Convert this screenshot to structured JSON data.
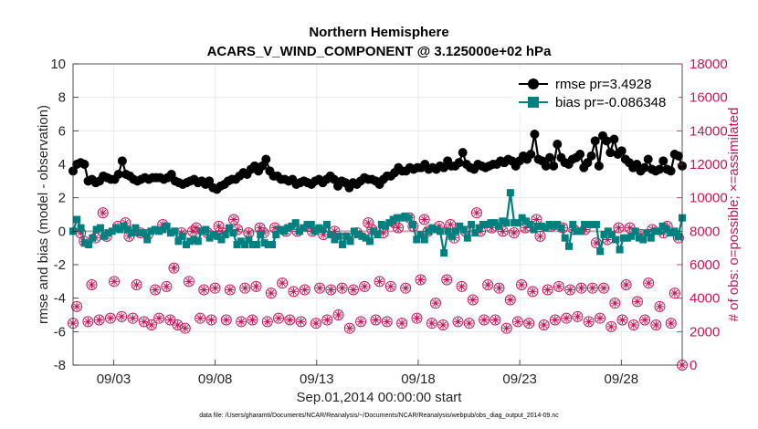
{
  "chart_data": {
    "type": "line",
    "title": "Northern Hemisphere",
    "subtitle": "ACARS_V_WIND_COMPONENT @ 3.125000e+02 hPa",
    "xlabel": "Sep.01,2014 00:00:00 start",
    "ylabel": "rmse and bias (model - observation)",
    "ylabel_right": "# of obs: o=possible; ×=assimilated",
    "footer": "data file: /Users/gharamti/Documents/NCAR/Reanalysis/~/Documents/NCAR/Reanalysis/webpub/obs_diag_output_2014-09.nc",
    "xlim": [
      1.0,
      31.0
    ],
    "ylim": [
      -8,
      10
    ],
    "ylim_right": [
      0,
      18000
    ],
    "grid": true,
    "legend_position": "top-right",
    "x_ticks": [
      3,
      8,
      13,
      18,
      23,
      28
    ],
    "x_tick_labels": [
      "09/03",
      "09/08",
      "09/13",
      "09/18",
      "09/23",
      "09/28"
    ],
    "y_ticks": [
      -8,
      -6,
      -4,
      -2,
      0,
      2,
      4,
      6,
      8,
      10
    ],
    "y_tick_labels": [
      "-8",
      "-6",
      "-4",
      "-2",
      "0",
      "2",
      "4",
      "6",
      "8",
      "10"
    ],
    "y_ticks_right": [
      0,
      2000,
      4000,
      6000,
      8000,
      10000,
      12000,
      14000,
      16000,
      18000
    ],
    "y_tick_labels_right": [
      "0",
      "2000",
      "4000",
      "6000",
      "8000",
      "10000",
      "12000",
      "14000",
      "16000",
      "18000"
    ],
    "colors": {
      "rmse": "#000000",
      "bias": "#00807f",
      "obs": "#c2185b",
      "zero_line": "#b0b0b0"
    },
    "series": [
      {
        "name": "rmse pr=3.4928",
        "values": [
          3.6,
          4.0,
          4.1,
          4.0,
          3.0,
          3.1,
          2.9,
          3.0,
          3.3,
          3.2,
          3.1,
          3.1,
          3.4,
          4.2,
          3.4,
          3.3,
          3.1,
          3.0,
          3.1,
          3.2,
          3.1,
          3.2,
          3.2,
          3.2,
          3.1,
          3.2,
          3.4,
          3.0,
          2.9,
          2.8,
          2.9,
          3.0,
          3.1,
          2.9,
          3.0,
          2.8,
          3.0,
          2.6,
          2.5,
          2.7,
          2.8,
          3.0,
          3.1,
          3.1,
          3.3,
          3.5,
          3.4,
          3.7,
          3.9,
          3.6,
          3.9,
          4.3,
          3.6,
          3.3,
          3.3,
          3.1,
          3.1,
          3.0,
          3.1,
          2.8,
          2.9,
          3.0,
          2.9,
          2.8,
          3.0,
          3.1,
          2.9,
          3.1,
          3.3,
          3.1,
          2.7,
          3.0,
          2.9,
          2.6,
          2.9,
          2.8,
          3.0,
          3.2,
          3.1,
          3.1,
          3.0,
          2.8,
          3.1,
          3.3,
          3.3,
          3.5,
          3.8,
          3.6,
          3.6,
          3.8,
          3.7,
          3.8,
          3.8,
          4.0,
          3.7,
          3.8,
          3.7,
          3.9,
          3.8,
          4.2,
          3.9,
          3.9,
          4.1,
          4.7,
          4.0,
          3.8,
          3.7,
          4.0,
          3.9,
          3.8,
          3.9,
          4.0,
          4.0,
          4.2,
          4.1,
          4.3,
          4.2,
          3.9,
          4.2,
          4.5,
          4.3,
          4.6,
          5.8,
          4.3,
          4.2,
          3.9,
          4.4,
          3.9,
          5.2,
          4.4,
          4.1,
          4.0,
          4.3,
          4.4,
          4.6,
          3.8,
          4.1,
          4.5,
          5.4,
          3.9,
          5.7,
          5.4,
          4.7,
          5.5,
          4.6,
          4.8,
          4.3,
          4.1,
          3.8,
          4.0,
          3.6,
          3.8,
          4.3,
          3.7,
          3.6,
          3.7,
          4.2,
          3.7,
          3.6,
          4.6,
          4.5,
          3.9
        ]
      },
      {
        "name": "bias pr=-0.086348",
        "values": [
          0.0,
          0.7,
          0.2,
          -0.7,
          -0.8,
          -0.4,
          0.1,
          0.2,
          -0.3,
          -0.1,
          0.0,
          0.2,
          0.1,
          0.3,
          0.1,
          -0.1,
          0.2,
          -0.1,
          -0.1,
          -0.5,
          0.0,
          0.1,
          0.0,
          0.1,
          0.3,
          -0.1,
          0.0,
          -0.6,
          -0.3,
          -0.8,
          -0.6,
          -0.5,
          -0.6,
          0.0,
          0.1,
          -0.4,
          -0.2,
          -0.3,
          -0.5,
          -0.2,
          0.2,
          -0.1,
          -0.8,
          -0.6,
          -0.8,
          -0.5,
          -0.8,
          -0.8,
          -0.2,
          -0.7,
          -0.8,
          -0.8,
          -0.2,
          0.1,
          0.0,
          0.2,
          0.3,
          0.5,
          0.0,
          0.2,
          0.4,
          0.4,
          0.0,
          0.2,
          0.1,
          0.4,
          -0.2,
          -0.5,
          -0.3,
          -0.8,
          -0.3,
          -0.6,
          0.0,
          -0.2,
          -0.3,
          -0.4,
          -0.6,
          0.0,
          -0.2,
          0.4,
          0.3,
          0.5,
          0.7,
          0.8,
          0.8,
          0.9,
          0.8,
          0.4,
          -0.5,
          -0.2,
          -0.5,
          0.0,
          0.2,
          0.1,
          0.0,
          -1.3,
          0.0,
          -0.3,
          0.0,
          0.3,
          0.1,
          -0.4,
          0.4,
          -0.1,
          0.2,
          0.4,
          0.4,
          0.5,
          0.5,
          0.3,
          0.6,
          0.5,
          2.3,
          0.5,
          0.5,
          0.8,
          0.6,
          0.4,
          0.1,
          0.3,
          0.3,
          0.2,
          0.4,
          0.3,
          0.4,
          0.2,
          -0.4,
          -0.9,
          0.4,
          0.0,
          0.0,
          0.4,
          0.4,
          0.4,
          0.4,
          -1.2,
          -0.2,
          0.0,
          -0.2,
          -0.5,
          -1.1,
          -0.4,
          -0.4,
          -0.3,
          0.0,
          -0.4,
          -0.5,
          -0.1,
          -0.4,
          0.0,
          0.0,
          0.3,
          0.1,
          -0.1,
          0.0,
          -0.3,
          0.8
        ]
      }
    ],
    "obs_possible": [
      2500,
      3500,
      7900,
      7400,
      2600,
      4800,
      7600,
      2700,
      9100,
      7700,
      2800,
      5000,
      8300,
      2900,
      8500,
      7700,
      2800,
      4800,
      7900,
      2600,
      7800,
      2400,
      4500,
      2800,
      8400,
      4700,
      2700,
      5800,
      2400,
      7900,
      2200,
      5000,
      8000,
      8200,
      2800,
      4500,
      7900,
      2700,
      4600,
      8300,
      7900,
      2700,
      4500,
      8700,
      8100,
      2600,
      4600,
      7900,
      2700,
      4700,
      8200,
      7900,
      2600,
      4300,
      8200,
      2800,
      4900,
      8000,
      2700,
      4400,
      8000,
      2600,
      4500,
      8300,
      8000,
      2500,
      4600,
      7800,
      2700,
      4500,
      8000,
      3000,
      4600,
      7600,
      2200,
      4500,
      7900,
      2600,
      4700,
      8500,
      8100,
      2700,
      5000,
      7900,
      2600,
      4700,
      8500,
      8200,
      2500,
      4600,
      8800,
      8300,
      2800,
      5100,
      8700,
      8000,
      2500,
      3700,
      8300,
      2400,
      5100,
      8400,
      7600,
      2600,
      4700,
      8000,
      2500,
      3900,
      9100,
      8000,
      2700,
      4800,
      8200,
      2700,
      4600,
      8000,
      2200,
      3900,
      7900,
      2600,
      4800,
      8200,
      2500,
      4400,
      8700,
      7700,
      2400,
      4500,
      8300,
      2700,
      4700,
      8200,
      2800,
      4500,
      8100,
      2900,
      4600,
      8100,
      2600,
      4600,
      7300,
      2800,
      4600,
      7500,
      2300,
      3700,
      8200,
      2700,
      4800,
      8200,
      2400,
      3800,
      7800,
      2700,
      4900,
      8100,
      2400,
      3500,
      7900,
      8300,
      2500,
      4300,
      7600,
      0
    ]
  }
}
